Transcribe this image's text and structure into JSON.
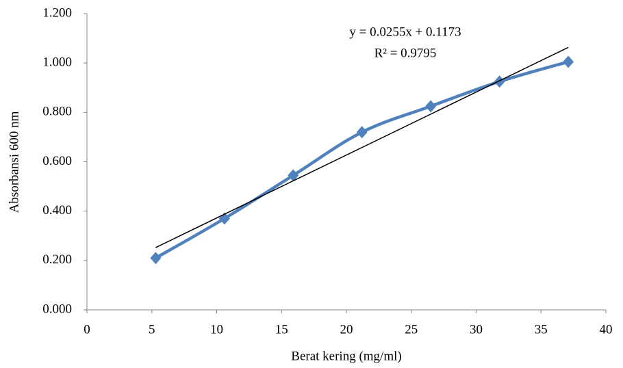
{
  "chart_data": {
    "type": "scatter_line",
    "x_label": "Berat kering (mg/ml)",
    "y_label": "Absorbansi 600 nm",
    "x": [
      5.3,
      10.6,
      15.9,
      21.2,
      26.5,
      31.8,
      37.1
    ],
    "series": [
      {
        "color": "#4f81bd",
        "values": [
          0.21,
          0.37,
          0.545,
          0.72,
          0.825,
          0.925,
          1.005
        ]
      }
    ],
    "trendline": {
      "equation": "y = 0.0255x + 0.1173",
      "r_squared": "R² = 0.9795",
      "slope": 0.0255,
      "intercept": 0.1173,
      "color": "#000000"
    },
    "xlim": [
      0,
      40
    ],
    "xticks": [
      0,
      5,
      10,
      15,
      20,
      25,
      30,
      35,
      40
    ],
    "ylim": [
      0,
      1.2
    ],
    "yticks": [
      {
        "value": 0,
        "label": "0.000"
      },
      {
        "value": 0.2,
        "label": "0.200"
      },
      {
        "value": 0.4,
        "label": "0.400"
      },
      {
        "value": 0.6,
        "label": "0.600"
      },
      {
        "value": 0.8,
        "label": "0.800"
      },
      {
        "value": 1.0,
        "label": "1.000"
      },
      {
        "value": 1.2,
        "label": "1.200"
      }
    ],
    "grid": false
  }
}
